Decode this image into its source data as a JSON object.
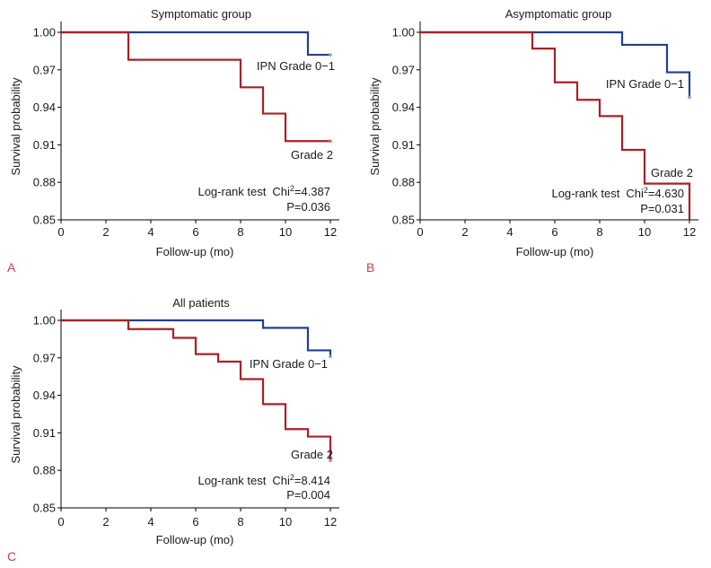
{
  "chart_data": [
    {
      "type": "line",
      "step": true,
      "panel_label": "A",
      "title": "Symptomatic group",
      "xlabel": "Follow-up (mo)",
      "ylabel": "Survival probability",
      "xlim": [
        0,
        12
      ],
      "ylim": [
        0.85,
        1.0
      ],
      "grid": false,
      "xticks": [
        "0",
        "2",
        "4",
        "6",
        "8",
        "10",
        "12"
      ],
      "yticks": [
        "1.00",
        "0.97",
        "0.94",
        "0.91",
        "0.88",
        "0.85"
      ],
      "series": [
        {
          "name": "IPN Grade 0−1",
          "color": "#22408d",
          "mark_color": "#7ea3d4",
          "censored_end": true,
          "x": [
            0,
            11,
            12
          ],
          "y": [
            1.0,
            0.982,
            0.982
          ]
        },
        {
          "name": "Grade 2",
          "color": "#a92127",
          "mark_color": "#d2707a",
          "censored_end": true,
          "x": [
            0,
            3,
            8,
            9,
            10,
            12
          ],
          "y": [
            1.0,
            0.978,
            0.956,
            0.935,
            0.913,
            0.913
          ]
        }
      ],
      "stats": {
        "test": "Log-rank test",
        "chi": "Chi",
        "chi_sup": "2",
        "chi_value": "=4.387",
        "p": "P=0.036"
      }
    },
    {
      "type": "line",
      "step": true,
      "panel_label": "B",
      "title": "Asymptomatic group",
      "xlabel": "Follow-up (mo)",
      "ylabel": "Survival probability",
      "xlim": [
        0,
        12
      ],
      "ylim": [
        0.85,
        1.0
      ],
      "grid": false,
      "xticks": [
        "0",
        "2",
        "4",
        "6",
        "8",
        "10",
        "12"
      ],
      "yticks": [
        "1.00",
        "0.97",
        "0.94",
        "0.91",
        "0.88",
        "0.85"
      ],
      "series": [
        {
          "name": "IPN Grade 0−1",
          "color": "#22408d",
          "mark_color": "#7ea3d4",
          "censored_end": true,
          "x": [
            0,
            9,
            11,
            12
          ],
          "y": [
            1.0,
            0.99,
            0.968,
            0.948
          ]
        },
        {
          "name": "Grade 2",
          "color": "#a92127",
          "mark_color": "#d2707a",
          "censored_end": false,
          "x": [
            0,
            5,
            6,
            7,
            8,
            9,
            10,
            12
          ],
          "y": [
            1.0,
            0.987,
            0.96,
            0.946,
            0.933,
            0.906,
            0.879,
            0.85
          ]
        }
      ],
      "stats": {
        "test": "Log-rank test",
        "chi": "Chi",
        "chi_sup": "2",
        "chi_value": "=4.630",
        "p": "P=0.031"
      }
    },
    {
      "type": "line",
      "step": true,
      "panel_label": "C",
      "title": "All patients",
      "xlabel": "Follow-up (mo)",
      "ylabel": "Survival probability",
      "xlim": [
        0,
        12
      ],
      "ylim": [
        0.85,
        1.0
      ],
      "grid": false,
      "xticks": [
        "0",
        "2",
        "4",
        "6",
        "8",
        "10",
        "12"
      ],
      "yticks": [
        "1.00",
        "0.97",
        "0.94",
        "0.91",
        "0.88",
        "0.85"
      ],
      "series": [
        {
          "name": "IPN Grade 0−1",
          "color": "#22408d",
          "mark_color": "#7ea3d4",
          "censored_end": true,
          "x": [
            0,
            9,
            11,
            12
          ],
          "y": [
            1.0,
            0.994,
            0.976,
            0.971
          ]
        },
        {
          "name": "Grade 2",
          "color": "#a92127",
          "mark_color": "#d2707a",
          "censored_end": true,
          "x": [
            0,
            3,
            5,
            6,
            7,
            8,
            9,
            10,
            11,
            12
          ],
          "y": [
            1.0,
            0.993,
            0.986,
            0.973,
            0.967,
            0.953,
            0.933,
            0.913,
            0.907,
            0.888
          ]
        }
      ],
      "stats": {
        "test": "Log-rank test",
        "chi": "Chi",
        "chi_sup": "2",
        "chi_value": "=8.414",
        "p": "P=0.004"
      }
    }
  ]
}
